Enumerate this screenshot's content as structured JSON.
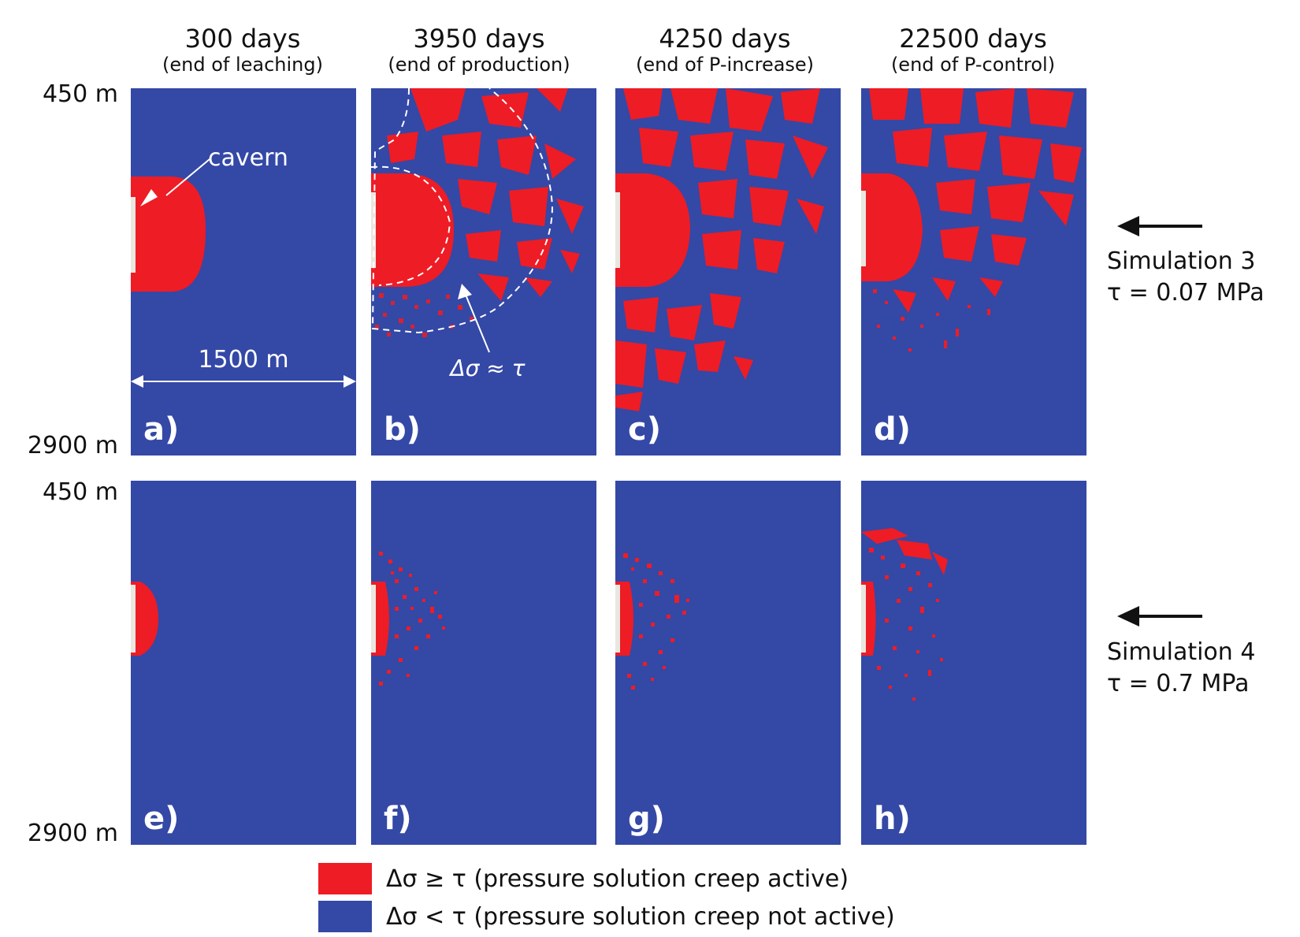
{
  "columns": [
    {
      "title": "300 days",
      "subtitle": "(end of leaching)"
    },
    {
      "title": "3950 days",
      "subtitle": "(end of production)"
    },
    {
      "title": "4250 days",
      "subtitle": "(end of P-increase)"
    },
    {
      "title": "22500 days",
      "subtitle": "(end of P-control)"
    }
  ],
  "depth_labels": {
    "row1_top": "450 m",
    "row1_bottom": "2900 m",
    "row2_top": "450 m",
    "row2_bottom": "2900 m"
  },
  "panel_labels": [
    "a)",
    "b)",
    "c)",
    "d)",
    "e)",
    "f)",
    "g)",
    "h)"
  ],
  "annotations": {
    "cavern": "cavern",
    "width": "1500 m",
    "stress_contour": "Δσ ≈ τ"
  },
  "simulations": [
    {
      "name": "Simulation 3",
      "tau": "τ = 0.07 MPa"
    },
    {
      "name": "Simulation 4",
      "tau": "τ = 0.7 MPa"
    }
  ],
  "legend": [
    {
      "label": "Δσ ≥ τ (pressure solution creep active)",
      "color": "#EE1C25"
    },
    {
      "label": "Δσ < τ (pressure solution creep not active)",
      "color": "#3448A6"
    }
  ],
  "colors": {
    "active": "#EE1C25",
    "inactive": "#3448A6"
  }
}
